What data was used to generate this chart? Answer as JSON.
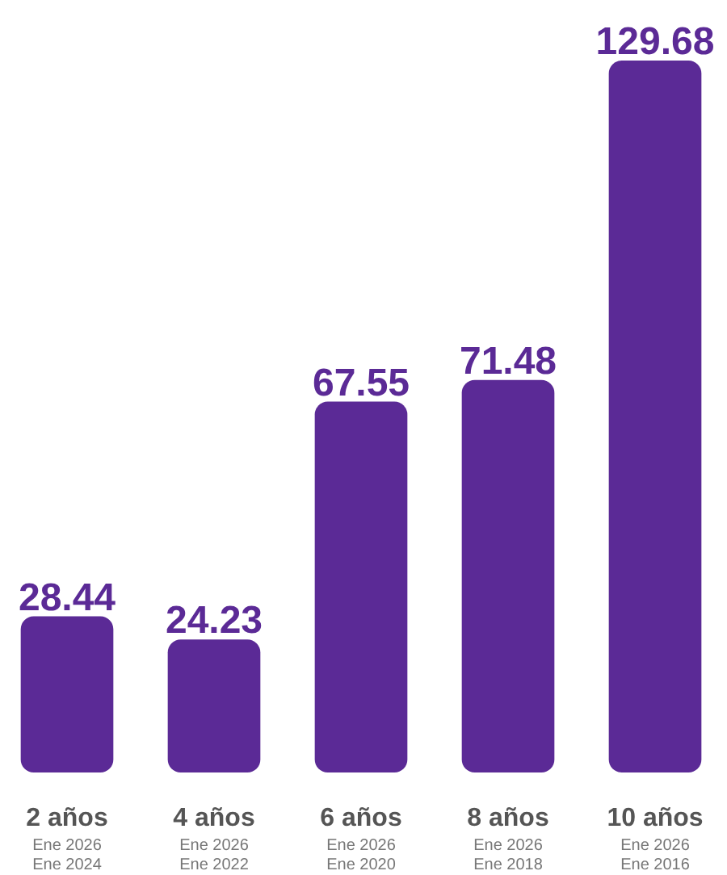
{
  "chart_data": {
    "type": "bar",
    "categories": [
      "2 años\nEne 2026\nEne 2024",
      "4 años\nEne 2026\nEne 2022",
      "6 años\nEne 2026\nEne 2020",
      "8 años\nEne 2026\nEne 2018",
      "10 años\nEne 2026\nEne 2016"
    ],
    "values": [
      28.44,
      24.23,
      67.55,
      71.48,
      129.68
    ],
    "color": "#5b2a96",
    "data_labels": true,
    "grid": false
  }
}
